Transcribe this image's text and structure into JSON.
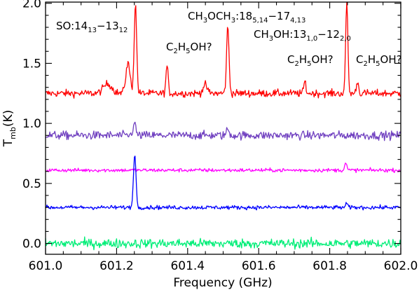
{
  "chart_data": {
    "type": "line",
    "title": "",
    "xlabel": "Frequency (GHz)",
    "ylabel": "T",
    "ylabel_sub": "mb",
    "ylabel_unit": "(K)",
    "xlim": [
      601.0,
      602.0
    ],
    "ylim": [
      -0.09,
      2.01
    ],
    "x_ticks": [
      601.0,
      601.2,
      601.4,
      601.6,
      601.8,
      602.0
    ],
    "x_tick_labels": [
      "601.0",
      "601.2",
      "601.4",
      "601.6",
      "601.8",
      "602.0"
    ],
    "y_ticks": [
      0.0,
      0.5,
      1.0,
      1.5,
      2.0
    ],
    "y_tick_labels": [
      "0.0",
      "0.5",
      "1.0",
      "1.5",
      "2.0"
    ],
    "grid": false,
    "legend": "none",
    "series": [
      {
        "color": "#ff0000",
        "baseline": 1.25,
        "noise": 0.022,
        "peaks": [
          {
            "x": 601.175,
            "height": 0.08,
            "width": 0.012
          },
          {
            "x": 601.232,
            "height": 0.25,
            "width": 0.006
          },
          {
            "x": 601.253,
            "height": 0.74,
            "width": 0.0035
          },
          {
            "x": 601.342,
            "height": 0.23,
            "width": 0.003
          },
          {
            "x": 601.449,
            "height": 0.07,
            "width": 0.006
          },
          {
            "x": 601.513,
            "height": 0.55,
            "width": 0.0035
          },
          {
            "x": 601.73,
            "height": 0.1,
            "width": 0.003
          },
          {
            "x": 601.848,
            "height": 0.79,
            "width": 0.003
          },
          {
            "x": 601.878,
            "height": 0.1,
            "width": 0.003
          }
        ]
      },
      {
        "color": "#7040c0",
        "baseline": 0.9,
        "noise": 0.025,
        "peaks": [
          {
            "x": 601.25,
            "height": 0.1,
            "width": 0.004
          },
          {
            "x": 601.513,
            "height": 0.05,
            "width": 0.004
          }
        ]
      },
      {
        "color": "#ff00ff",
        "baseline": 0.61,
        "noise": 0.011,
        "peaks": [
          {
            "x": 601.845,
            "height": 0.06,
            "width": 0.003
          }
        ]
      },
      {
        "color": "#0000ff",
        "baseline": 0.3,
        "noise": 0.012,
        "peaks": [
          {
            "x": 601.251,
            "height": 0.45,
            "width": 0.0035
          },
          {
            "x": 601.848,
            "height": 0.03,
            "width": 0.003
          }
        ]
      },
      {
        "color": "#00ee77",
        "baseline": 0.0,
        "noise": 0.028,
        "peaks": []
      }
    ],
    "annotations": [
      {
        "base": "SO:14",
        "parts": [
          {
            "t": "13",
            "s": "sub"
          },
          {
            "t": "−13",
            "s": "base"
          },
          {
            "t": "12",
            "s": "sub"
          }
        ]
      },
      {
        "base": "C",
        "parts": [
          {
            "t": "2",
            "s": "sub"
          },
          {
            "t": "H",
            "s": "base"
          },
          {
            "t": "5",
            "s": "sub"
          },
          {
            "t": "OH?",
            "s": "base"
          }
        ]
      },
      {
        "base": "CH",
        "parts": [
          {
            "t": "3",
            "s": "sub"
          },
          {
            "t": "OCH",
            "s": "base"
          },
          {
            "t": "3",
            "s": "sub"
          },
          {
            "t": ":18",
            "s": "base"
          },
          {
            "t": "5,14",
            "s": "sub"
          },
          {
            "t": "−17",
            "s": "base"
          },
          {
            "t": "4,13",
            "s": "sub"
          }
        ]
      },
      {
        "base": "CH",
        "parts": [
          {
            "t": "3",
            "s": "sub"
          },
          {
            "t": "OH:13",
            "s": "base"
          },
          {
            "t": "1,0",
            "s": "sub"
          },
          {
            "t": "−12",
            "s": "base"
          },
          {
            "t": "2,0",
            "s": "sub"
          }
        ]
      },
      {
        "base": "C",
        "parts": [
          {
            "t": "2",
            "s": "sub"
          },
          {
            "t": "H",
            "s": "base"
          },
          {
            "t": "5",
            "s": "sub"
          },
          {
            "t": "OH?",
            "s": "base"
          }
        ]
      },
      {
        "base": "C",
        "parts": [
          {
            "t": "2",
            "s": "sub"
          },
          {
            "t": "H",
            "s": "base"
          },
          {
            "t": "5",
            "s": "sub"
          },
          {
            "t": "OH?",
            "s": "base"
          }
        ]
      }
    ]
  }
}
